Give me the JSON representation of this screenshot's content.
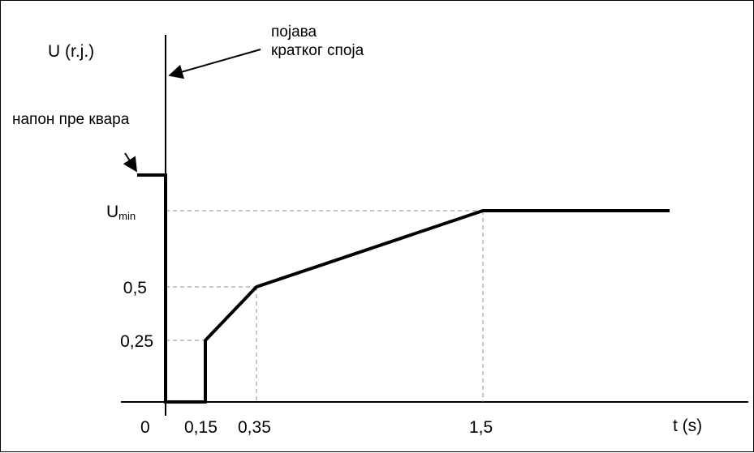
{
  "chart_data": {
    "type": "line",
    "title": "",
    "ylabel": "U (r.j.)",
    "xlabel": "t (s)",
    "x_ticks": [
      "0",
      "0,15",
      "0,35",
      "1,5"
    ],
    "y_ticks": [
      {
        "label": "0,25",
        "value": 0.25
      },
      {
        "label": "0,5",
        "value": 0.5
      },
      {
        "label_main": "U",
        "label_sub": "min",
        "value": 0.78
      }
    ],
    "series": [
      {
        "points": [
          {
            "x": -0.15,
            "y": 1.0
          },
          {
            "x": 0,
            "y": 1.0
          },
          {
            "x": 0,
            "y": 0
          },
          {
            "x": 0.15,
            "y": 0
          },
          {
            "x": 0.15,
            "y": 0.25
          },
          {
            "x": 0.35,
            "y": 0.5
          },
          {
            "x": 1.5,
            "y": 0.78
          },
          {
            "x": 2.2,
            "y": 0.78
          }
        ]
      }
    ],
    "guides": [
      {
        "x": 0.15,
        "y": 0.25
      },
      {
        "x": 0.35,
        "y": 0.5
      },
      {
        "x": 1.5,
        "y": 0.78
      }
    ],
    "annotations": [
      {
        "name": "fault-onset",
        "lines": [
          "појава",
          "кратког споја"
        ]
      },
      {
        "name": "prefault-voltage",
        "lines": [
          "напон пре квара"
        ]
      }
    ],
    "colors": {
      "line": "#000000",
      "guide": "#8c8c8c"
    }
  }
}
